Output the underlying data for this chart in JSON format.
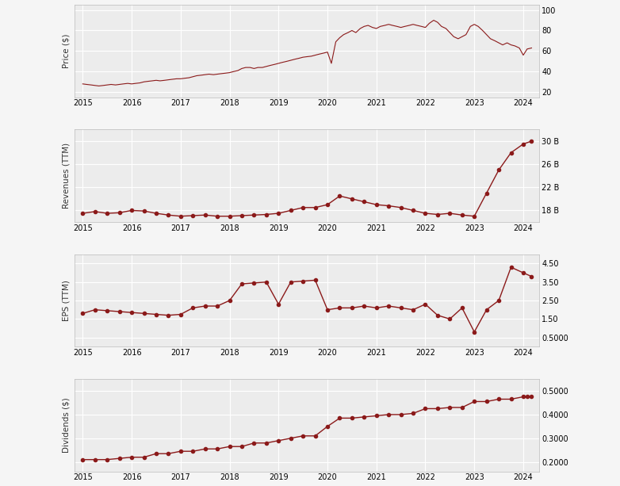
{
  "background_color": "#f5f5f5",
  "line_color": "#8b1a1a",
  "marker_color": "#8b1a1a",
  "grid_color": "#ffffff",
  "panel_bg": "#ececec",
  "price": {
    "ylabel": "Price ($)",
    "yticks": [
      20,
      40,
      60,
      80,
      100
    ],
    "ylim": [
      15,
      105
    ],
    "dates": [
      2015.0,
      2015.08,
      2015.17,
      2015.25,
      2015.33,
      2015.42,
      2015.5,
      2015.58,
      2015.67,
      2015.75,
      2015.83,
      2015.92,
      2016.0,
      2016.08,
      2016.17,
      2016.25,
      2016.33,
      2016.42,
      2016.5,
      2016.58,
      2016.67,
      2016.75,
      2016.83,
      2016.92,
      2017.0,
      2017.08,
      2017.17,
      2017.25,
      2017.33,
      2017.42,
      2017.5,
      2017.58,
      2017.67,
      2017.75,
      2017.83,
      2017.92,
      2018.0,
      2018.08,
      2018.17,
      2018.25,
      2018.33,
      2018.42,
      2018.5,
      2018.58,
      2018.67,
      2018.75,
      2018.83,
      2018.92,
      2019.0,
      2019.08,
      2019.17,
      2019.25,
      2019.33,
      2019.42,
      2019.5,
      2019.58,
      2019.67,
      2019.75,
      2019.83,
      2019.92,
      2020.0,
      2020.08,
      2020.17,
      2020.25,
      2020.33,
      2020.42,
      2020.5,
      2020.58,
      2020.67,
      2020.75,
      2020.83,
      2020.92,
      2021.0,
      2021.08,
      2021.17,
      2021.25,
      2021.33,
      2021.42,
      2021.5,
      2021.58,
      2021.67,
      2021.75,
      2021.83,
      2021.92,
      2022.0,
      2022.08,
      2022.17,
      2022.25,
      2022.33,
      2022.42,
      2022.5,
      2022.58,
      2022.67,
      2022.75,
      2022.83,
      2022.92,
      2023.0,
      2023.08,
      2023.17,
      2023.25,
      2023.33,
      2023.42,
      2023.5,
      2023.58,
      2023.67,
      2023.75,
      2023.83,
      2023.92,
      2024.0,
      2024.08,
      2024.17
    ],
    "values": [
      28,
      27.5,
      27,
      26.5,
      26,
      26.5,
      27,
      27.5,
      27,
      27.5,
      28,
      28.5,
      28,
      28.5,
      29,
      30,
      30.5,
      31,
      31.5,
      31,
      31.5,
      32,
      32.5,
      33,
      33,
      33.5,
      34,
      35,
      36,
      36.5,
      37,
      37.5,
      37,
      37.5,
      38,
      38.5,
      39,
      40,
      41,
      43,
      44,
      44,
      43,
      44,
      44,
      45,
      46,
      47,
      48,
      49,
      50,
      51,
      52,
      53,
      54,
      54.5,
      55,
      56,
      57,
      58,
      59,
      48,
      69,
      73,
      76,
      78,
      80,
      78,
      82,
      84,
      85,
      83,
      82,
      84,
      85,
      86,
      85,
      84,
      83,
      84,
      85,
      86,
      85,
      84,
      83,
      87,
      90,
      88,
      84,
      82,
      78,
      74,
      72,
      74,
      76,
      84,
      86,
      84,
      80,
      76,
      72,
      70,
      68,
      66,
      68,
      66,
      65,
      63,
      56,
      62,
      63
    ]
  },
  "revenue": {
    "ylabel": "Revenues (TTM)",
    "ytick_labels": [
      "18 B",
      "22 B",
      "26 B",
      "30 B"
    ],
    "ytick_vals": [
      18000000000.0,
      22000000000.0,
      26000000000.0,
      30000000000.0
    ],
    "ylim": [
      16000000000.0,
      32000000000.0
    ],
    "dates": [
      2015.0,
      2015.25,
      2015.5,
      2015.75,
      2016.0,
      2016.25,
      2016.5,
      2016.75,
      2017.0,
      2017.25,
      2017.5,
      2017.75,
      2018.0,
      2018.25,
      2018.5,
      2018.75,
      2019.0,
      2019.25,
      2019.5,
      2019.75,
      2020.0,
      2020.25,
      2020.5,
      2020.75,
      2021.0,
      2021.25,
      2021.5,
      2021.75,
      2022.0,
      2022.25,
      2022.5,
      2022.75,
      2023.0,
      2023.25,
      2023.5,
      2023.75,
      2024.0,
      2024.17
    ],
    "values": [
      17500000000.0,
      17800000000.0,
      17500000000.0,
      17600000000.0,
      18000000000.0,
      17900000000.0,
      17500000000.0,
      17200000000.0,
      17000000000.0,
      17100000000.0,
      17200000000.0,
      17000000000.0,
      17000000000.0,
      17100000000.0,
      17200000000.0,
      17300000000.0,
      17500000000.0,
      18000000000.0,
      18500000000.0,
      18500000000.0,
      19000000000.0,
      20500000000.0,
      20000000000.0,
      19500000000.0,
      19000000000.0,
      18800000000.0,
      18500000000.0,
      18000000000.0,
      17500000000.0,
      17300000000.0,
      17500000000.0,
      17200000000.0,
      17000000000.0,
      21000000000.0,
      25000000000.0,
      28000000000.0,
      29500000000.0,
      30000000000.0
    ]
  },
  "eps": {
    "ylabel": "EPS (TTM)",
    "ytick_labels": [
      "0.5000",
      "1.50",
      "2.50",
      "3.50",
      "4.50"
    ],
    "ytick_vals": [
      0.5,
      1.5,
      2.5,
      3.5,
      4.5
    ],
    "ylim": [
      0.0,
      5.0
    ],
    "dates": [
      2015.0,
      2015.25,
      2015.5,
      2015.75,
      2016.0,
      2016.25,
      2016.5,
      2016.75,
      2017.0,
      2017.25,
      2017.5,
      2017.75,
      2018.0,
      2018.25,
      2018.5,
      2018.75,
      2019.0,
      2019.25,
      2019.5,
      2019.75,
      2020.0,
      2020.25,
      2020.5,
      2020.75,
      2021.0,
      2021.25,
      2021.5,
      2021.75,
      2022.0,
      2022.25,
      2022.5,
      2022.75,
      2023.0,
      2023.25,
      2023.5,
      2023.75,
      2024.0,
      2024.17
    ],
    "values": [
      1.8,
      2.0,
      1.95,
      1.9,
      1.85,
      1.8,
      1.75,
      1.7,
      1.75,
      2.1,
      2.2,
      2.2,
      2.5,
      3.4,
      3.45,
      3.5,
      2.3,
      3.5,
      3.55,
      3.6,
      2.0,
      2.1,
      2.1,
      2.2,
      2.1,
      2.2,
      2.1,
      2.0,
      2.3,
      1.7,
      1.5,
      2.1,
      0.8,
      2.0,
      2.5,
      4.3,
      4.0,
      3.8
    ]
  },
  "dividends": {
    "ylabel": "Dividends ($)",
    "ytick_labels": [
      "0.2000",
      "0.3000",
      "0.4000",
      "0.5000"
    ],
    "ytick_vals": [
      0.2,
      0.3,
      0.4,
      0.5
    ],
    "ylim": [
      0.16,
      0.55
    ],
    "dates": [
      2015.0,
      2015.25,
      2015.5,
      2015.75,
      2016.0,
      2016.25,
      2016.5,
      2016.75,
      2017.0,
      2017.25,
      2017.5,
      2017.75,
      2018.0,
      2018.25,
      2018.5,
      2018.75,
      2019.0,
      2019.25,
      2019.5,
      2019.75,
      2020.0,
      2020.25,
      2020.5,
      2020.75,
      2021.0,
      2021.25,
      2021.5,
      2021.75,
      2022.0,
      2022.25,
      2022.5,
      2022.75,
      2023.0,
      2023.25,
      2023.5,
      2023.75,
      2024.0,
      2024.08,
      2024.17
    ],
    "values": [
      0.21,
      0.21,
      0.21,
      0.215,
      0.22,
      0.22,
      0.235,
      0.235,
      0.245,
      0.245,
      0.255,
      0.255,
      0.265,
      0.265,
      0.28,
      0.28,
      0.29,
      0.3,
      0.31,
      0.31,
      0.35,
      0.385,
      0.385,
      0.39,
      0.395,
      0.4,
      0.4,
      0.405,
      0.425,
      0.425,
      0.43,
      0.43,
      0.455,
      0.455,
      0.465,
      0.465,
      0.475,
      0.475,
      0.475
    ]
  },
  "xlim": [
    2014.83,
    2024.33
  ],
  "xticks": [
    2015,
    2016,
    2017,
    2018,
    2019,
    2020,
    2021,
    2022,
    2023,
    2024
  ],
  "xtick_labels": [
    "2015",
    "2016",
    "2017",
    "2018",
    "2019",
    "2020",
    "2021",
    "2022",
    "2023",
    "2024"
  ]
}
